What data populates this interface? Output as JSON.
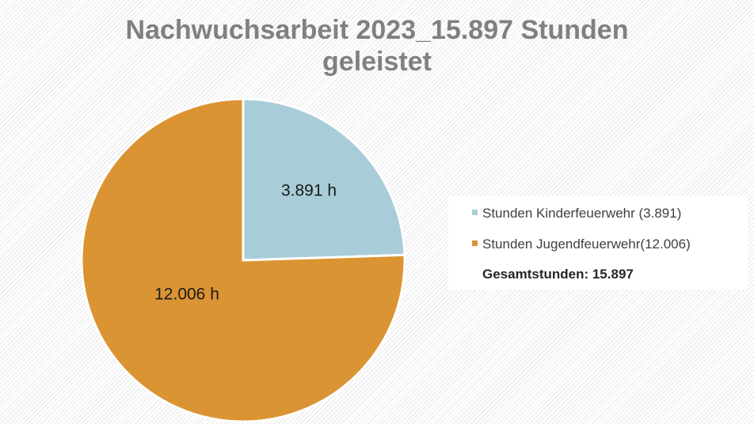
{
  "chart_data": {
    "type": "pie",
    "title": "Nachwuchsarbeit 2023_15.897 Stunden geleistet",
    "title_lines": [
      "Nachwuchsarbeit 2023_15.897 Stunden",
      "geleistet"
    ],
    "slices": [
      {
        "name": "Stunden Kinderfeuerwehr (3.891)",
        "value": 3891,
        "label": "3.891 h",
        "color": "#a9cdd8"
      },
      {
        "name": "Stunden Jugendfeuerwehr(12.006)",
        "value": 12006,
        "label": "12.006 h",
        "color": "#db9433"
      }
    ],
    "legend": {
      "placement": "right",
      "entries": [
        {
          "text": "Stunden Kinderfeuerwehr (3.891)",
          "color": "#a9cdd8"
        },
        {
          "text": "Stunden Jugendfeuerwehr(12.006)",
          "color": "#db9433"
        },
        {
          "text": "Gesamtstunden: 15.897",
          "color": "#ffffff"
        }
      ]
    }
  }
}
